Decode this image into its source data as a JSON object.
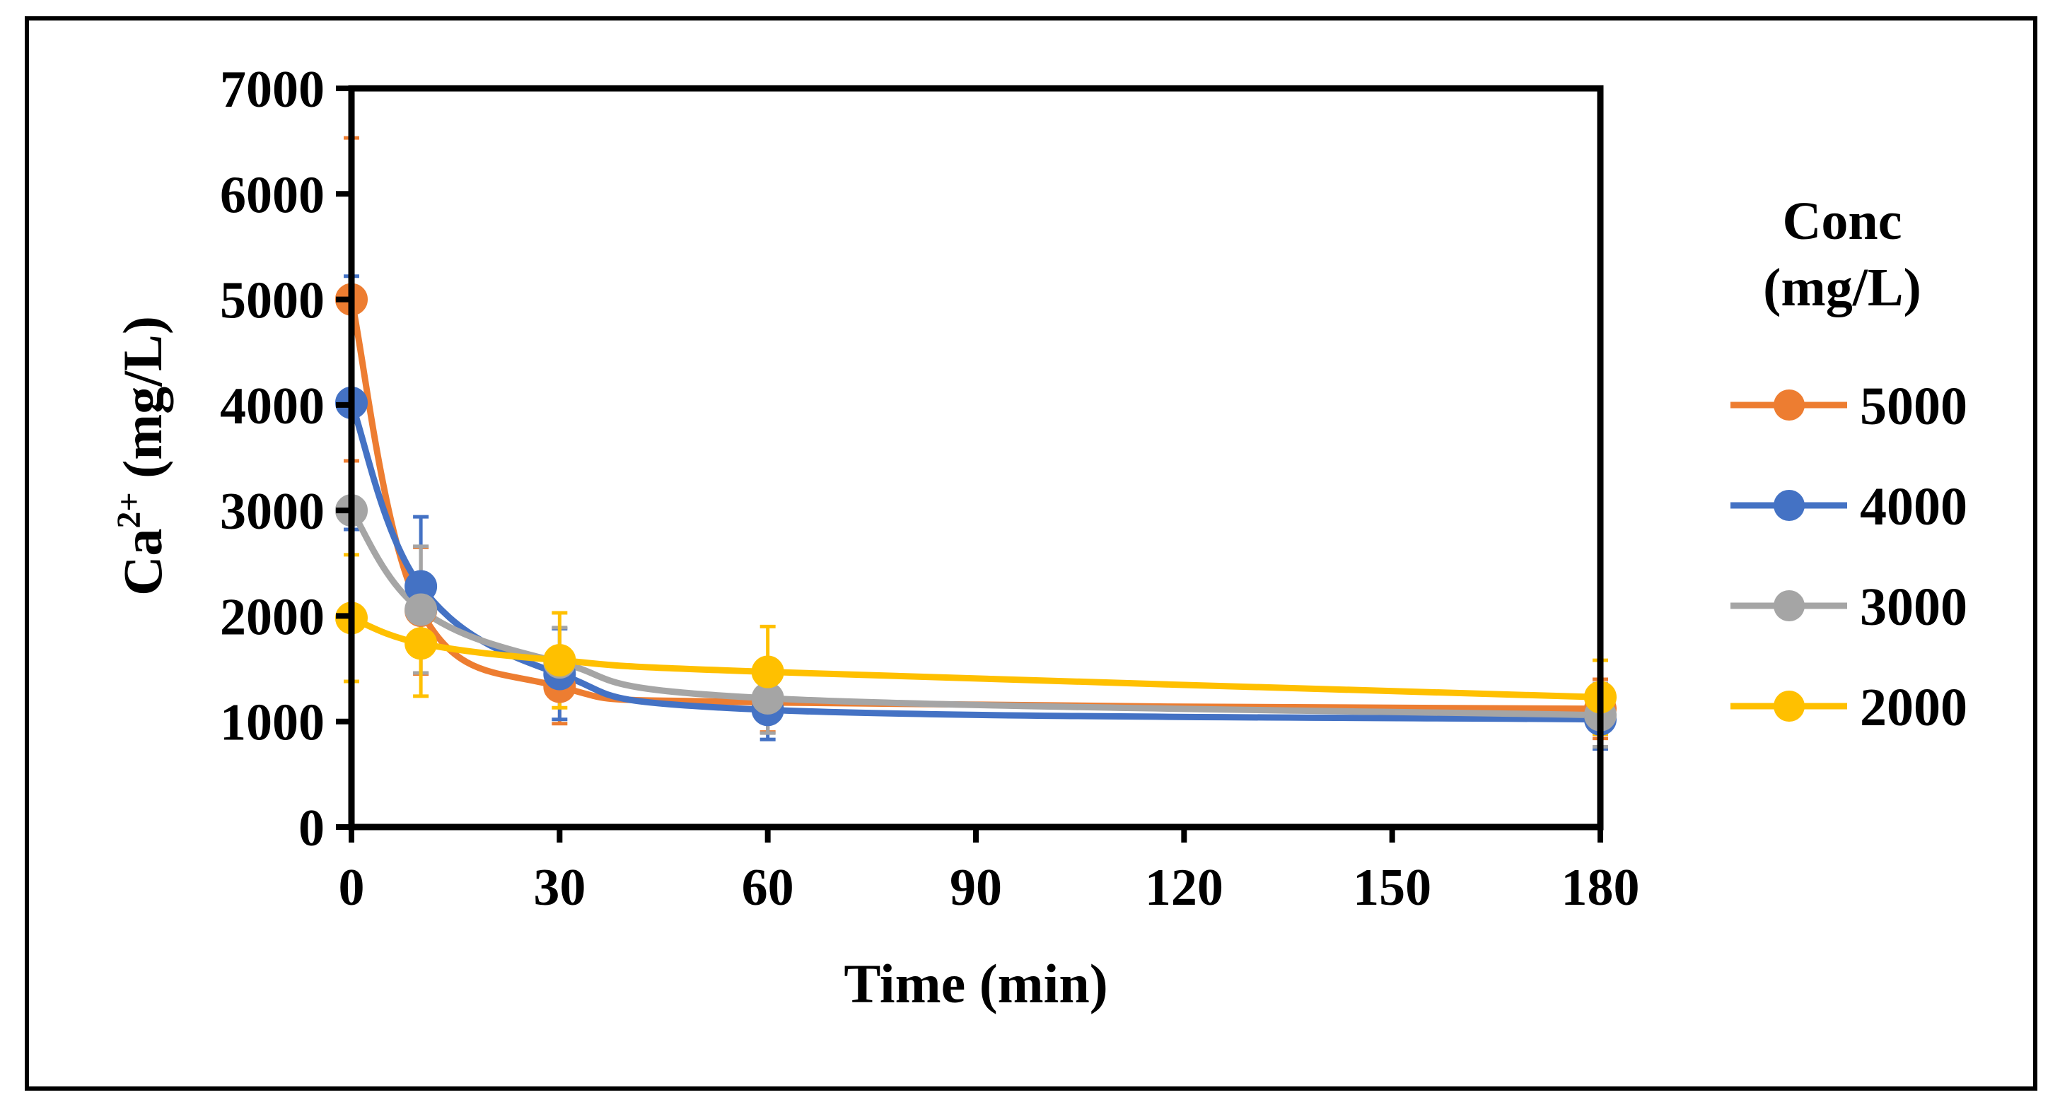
{
  "chart_data": {
    "type": "line",
    "title": "",
    "xlabel": "Time (min)",
    "ylabel_main": "Ca",
    "ylabel_sup": "2+",
    "ylabel_rest": " (mg/L)",
    "xlim": [
      0,
      180
    ],
    "ylim": [
      0,
      7000
    ],
    "xticks": [
      0,
      30,
      60,
      90,
      120,
      150,
      180
    ],
    "yticks": [
      0,
      1000,
      2000,
      3000,
      4000,
      5000,
      6000,
      7000
    ],
    "x": [
      0,
      10,
      30,
      60,
      180
    ],
    "legend_title_line1": "Conc",
    "legend_title_line2": "(mg/L)",
    "legend_position": "right",
    "grid": false,
    "series": [
      {
        "name": "5000",
        "color": "#ED7D31",
        "values": [
          5000,
          2050,
          1330,
          1180,
          1120
        ],
        "errors": [
          1530,
          600,
          350,
          280,
          280
        ]
      },
      {
        "name": "4000",
        "color": "#4472C4",
        "values": [
          4020,
          2280,
          1450,
          1110,
          1020
        ],
        "errors": [
          1200,
          660,
          430,
          280,
          280
        ]
      },
      {
        "name": "3000",
        "color": "#A5A5A5",
        "values": [
          3000,
          2060,
          1560,
          1220,
          1060
        ],
        "errors": [
          1100,
          600,
          330,
          330,
          300
        ]
      },
      {
        "name": "2000",
        "color": "#FFC000",
        "values": [
          1980,
          1740,
          1580,
          1470,
          1230
        ],
        "errors": [
          600,
          500,
          450,
          430,
          350
        ]
      }
    ]
  }
}
